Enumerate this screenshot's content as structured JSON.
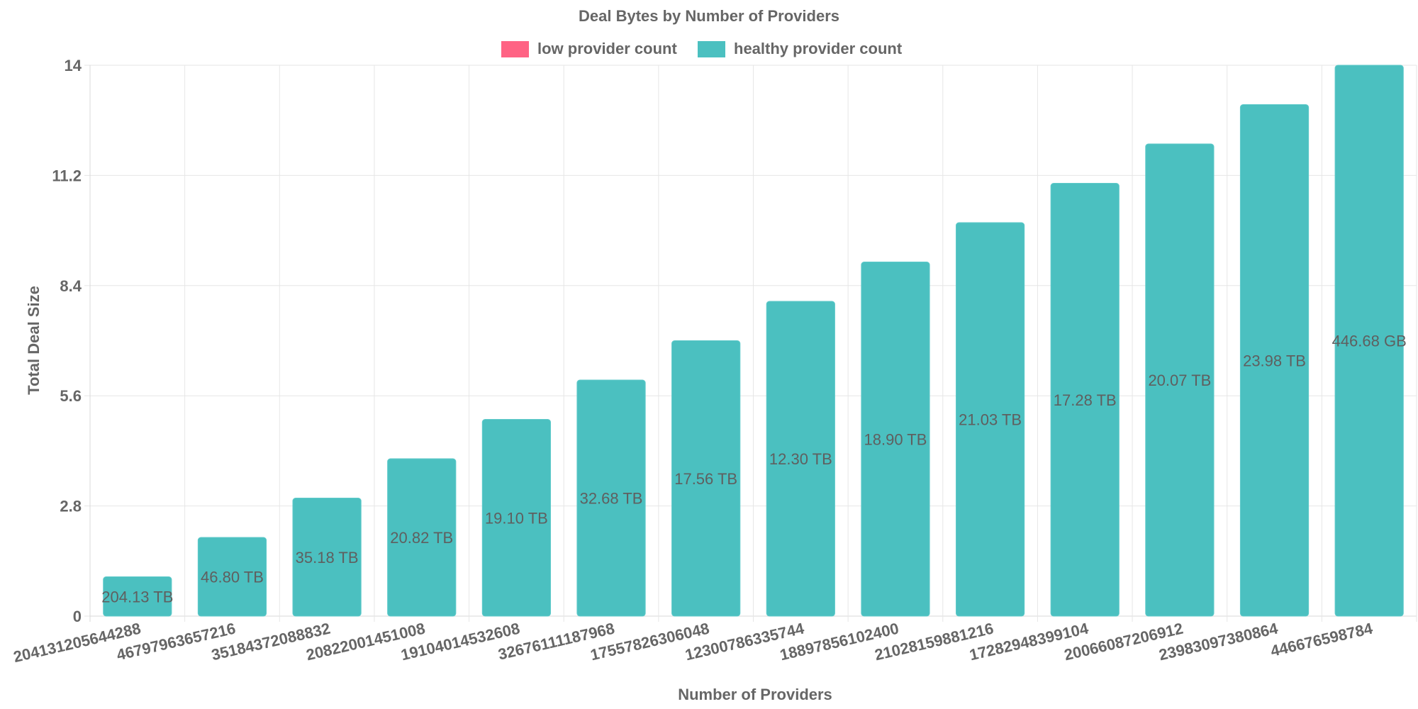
{
  "chart_data": {
    "type": "bar",
    "title": "Deal Bytes by Number of Providers",
    "xlabel": "Number of Providers",
    "ylabel": "Total Deal Size",
    "ylim": [
      0,
      14
    ],
    "yticks": [
      "0",
      "2.8",
      "5.6",
      "8.4",
      "11.2",
      "14"
    ],
    "legend": {
      "position": "top",
      "entries": [
        {
          "name": "low provider count",
          "color": "#ff6384"
        },
        {
          "name": "healthy provider count",
          "color": "#4bc0c0"
        }
      ]
    },
    "categories": [
      "204131205644288",
      "46797963657216",
      "35184372088832",
      "20822001451008",
      "19104014532608",
      "32676111187968",
      "17557826306048",
      "12300786335744",
      "18897856102400",
      "21028159881216",
      "17282948399104",
      "20066087206912",
      "23983097380864",
      "446676598784"
    ],
    "values": [
      1,
      2,
      3,
      4,
      5,
      6,
      7,
      8,
      9,
      10,
      11,
      12,
      13,
      14
    ],
    "data_labels": [
      "204.13 TB",
      "46.80 TB",
      "35.18 TB",
      "20.82 TB",
      "19.10 TB",
      "32.68 TB",
      "17.56 TB",
      "12.30 TB",
      "18.90 TB",
      "21.03 TB",
      "17.28 TB",
      "20.07 TB",
      "23.98 TB",
      "446.68 GB"
    ],
    "bar_color": "#4bc0c0",
    "grid": true
  }
}
